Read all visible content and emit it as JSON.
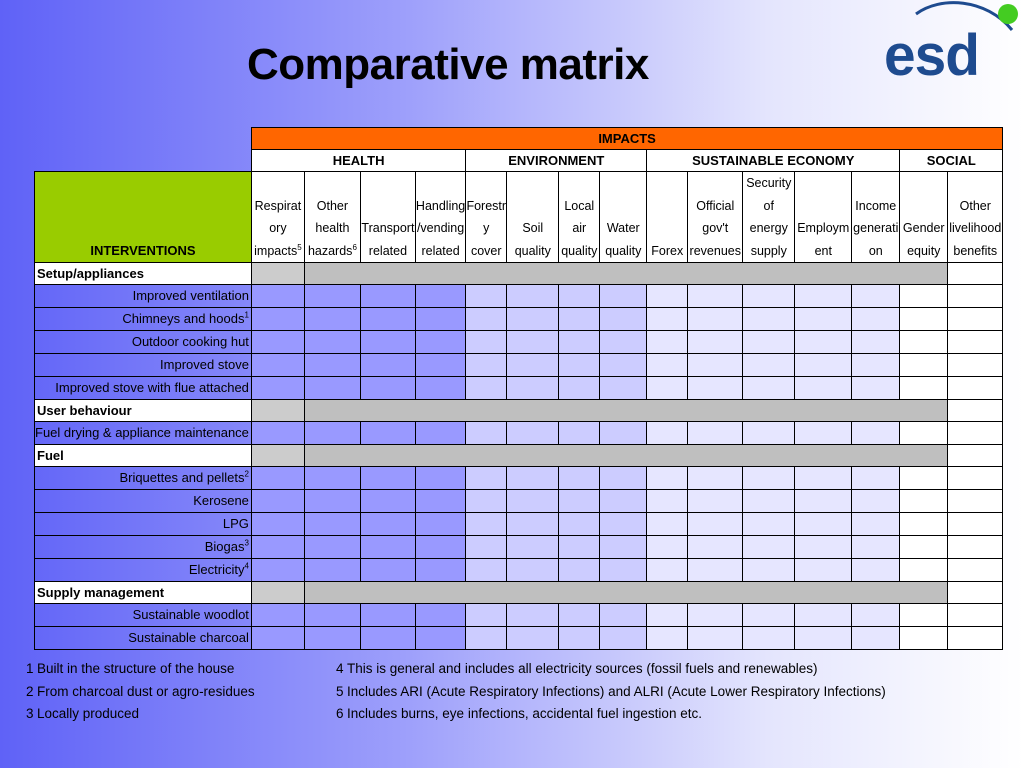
{
  "slide": {
    "title": "Comparative matrix"
  },
  "logo": {
    "text": "esd"
  },
  "matrix": {
    "impacts_label": "IMPACTS",
    "interventions_label": "INTERVENTIONS",
    "groups": [
      {
        "label": "HEALTH",
        "span": 4
      },
      {
        "label": "ENVIRONMENT",
        "span": 4
      },
      {
        "label": "SUSTAINABLE ECONOMY",
        "span": 5
      },
      {
        "label": "SOCIAL",
        "span": 2
      }
    ],
    "columns": [
      {
        "lines": [
          "Respirat",
          "ory",
          "impacts"
        ],
        "sup": "5",
        "shade": "dark"
      },
      {
        "lines": [
          "Other",
          "health",
          "hazards"
        ],
        "sup": "6",
        "shade": "dark"
      },
      {
        "lines": [
          "Transport",
          "related"
        ],
        "sup": "",
        "shade": "dark"
      },
      {
        "lines": [
          "Handling",
          "/vending",
          "related"
        ],
        "sup": "",
        "shade": "dark"
      },
      {
        "lines": [
          "Forestr",
          "y cover"
        ],
        "sup": "",
        "shade": "mid"
      },
      {
        "lines": [
          "Soil",
          "quality"
        ],
        "sup": "",
        "shade": "mid"
      },
      {
        "lines": [
          "Local",
          "air",
          "quality"
        ],
        "sup": "",
        "shade": "mid"
      },
      {
        "lines": [
          "Water",
          "quality"
        ],
        "sup": "",
        "shade": "mid"
      },
      {
        "lines": [
          "Forex"
        ],
        "sup": "",
        "shade": "light"
      },
      {
        "lines": [
          "Official",
          "gov't",
          "revenues"
        ],
        "sup": "",
        "shade": "light"
      },
      {
        "lines": [
          "Security",
          "of energy",
          "supply"
        ],
        "sup": "",
        "shade": "light"
      },
      {
        "lines": [
          "Employm",
          "ent"
        ],
        "sup": "",
        "shade": "light"
      },
      {
        "lines": [
          "Income",
          "generati",
          "on"
        ],
        "sup": "",
        "shade": "light"
      },
      {
        "lines": [
          "Gender",
          "equity"
        ],
        "sup": "",
        "shade": "white"
      },
      {
        "lines": [
          "Other",
          "livelihood",
          "benefits"
        ],
        "sup": "",
        "shade": "white"
      }
    ],
    "sections": [
      {
        "label": "Setup/appliances",
        "rows": [
          {
            "label": "Improved ventilation",
            "sup": ""
          },
          {
            "label": "Chimneys and hoods",
            "sup": "1"
          },
          {
            "label": "Outdoor cooking hut",
            "sup": ""
          },
          {
            "label": "Improved stove",
            "sup": ""
          },
          {
            "label": "Improved stove with flue attached",
            "sup": ""
          }
        ]
      },
      {
        "label": "User behaviour",
        "rows": [
          {
            "label": "Fuel drying & appliance maintenance",
            "sup": ""
          }
        ]
      },
      {
        "label": "Fuel",
        "rows": [
          {
            "label": "Briquettes and pellets",
            "sup": "2"
          },
          {
            "label": "Kerosene",
            "sup": ""
          },
          {
            "label": "LPG",
            "sup": ""
          },
          {
            "label": "Biogas",
            "sup": "3"
          },
          {
            "label": "Electricity",
            "sup": "4"
          }
        ]
      },
      {
        "label": "Supply management",
        "rows": [
          {
            "label": "Sustainable woodlot",
            "sup": ""
          },
          {
            "label": "Sustainable charcoal",
            "sup": ""
          }
        ]
      }
    ]
  },
  "footnotes": {
    "left": [
      {
        "num": "1",
        "text": "Built in the structure of the house"
      },
      {
        "num": "2",
        "text": "From charcoal dust or agro-residues"
      },
      {
        "num": "3",
        "text": "Locally produced"
      }
    ],
    "right": [
      {
        "num": "4",
        "text": "This is general and includes all electricity sources (fossil fuels and renewables)"
      },
      {
        "num": "5",
        "text": "Includes ARI (Acute Respiratory Infections) and ALRI (Acute Lower Respiratory Infections)"
      },
      {
        "num": "6",
        "text": "Includes burns, eye infections, accidental fuel ingestion etc."
      }
    ]
  }
}
